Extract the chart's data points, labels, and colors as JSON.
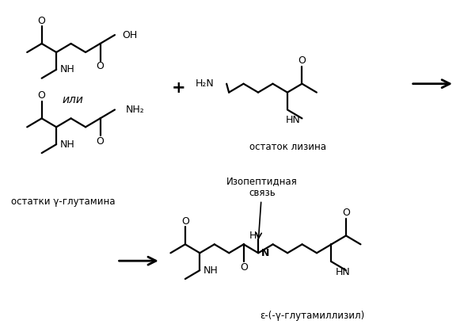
{
  "background": "#ffffff",
  "figsize": [
    5.86,
    4.19
  ],
  "dpi": 100,
  "labels": {
    "or": "или",
    "plus": "+",
    "lysine_label": "остаток лизина",
    "glutamine_label": "остатки γ-глутамина",
    "isopeptide_label": "Изопептидная\nсвязь",
    "product_label": "ε-(-γ-глутамиллизил)"
  }
}
